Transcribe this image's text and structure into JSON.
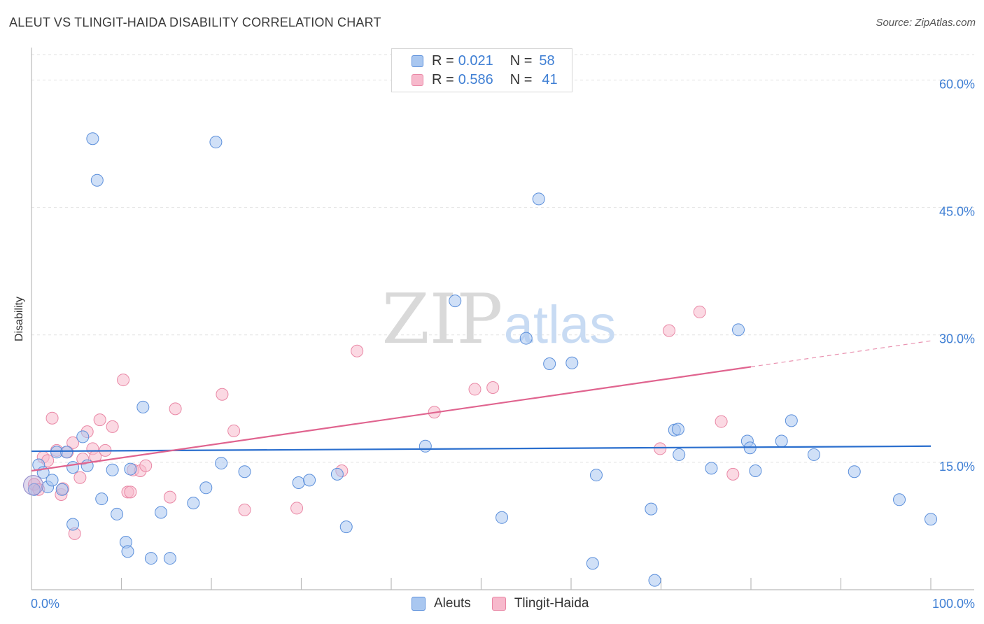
{
  "title": "ALEUT VS TLINGIT-HAIDA DISABILITY CORRELATION CHART",
  "source": "Source: ZipAtlas.com",
  "watermark": {
    "zip": "ZIP",
    "atlas": "atlas"
  },
  "colors": {
    "aleut_fill": "#a9c7f0",
    "aleut_stroke": "#5b8fdb",
    "aleut_line": "#2b6fce",
    "tlingit_fill": "#f7b9cc",
    "tlingit_stroke": "#e987a5",
    "tlingit_line": "#e0648f",
    "tick_label": "#3f7fd4",
    "grid": "#e2e2e2"
  },
  "legend": {
    "rows": [
      {
        "r_label": "R =",
        "r_value": "0.021",
        "n_label": "N =",
        "n_value": "58"
      },
      {
        "r_label": "R =",
        "r_value": "0.586",
        "n_label": "N =",
        "n_value": "41"
      }
    ]
  },
  "bottom_legend": {
    "aleut": "Aleuts",
    "tlingit": "Tlingit-Haida"
  },
  "chart_data": {
    "type": "scatter",
    "title": "ALEUT VS TLINGIT-HAIDA DISABILITY CORRELATION CHART",
    "xlabel": "",
    "ylabel": "Disability",
    "xlim": [
      0,
      100
    ],
    "ylim": [
      0,
      60
    ],
    "x_tick_labels": [
      "0.0%",
      "100.0%"
    ],
    "y_ticks": [
      15,
      30,
      45,
      60
    ],
    "y_tick_labels": [
      "15.0%",
      "30.0%",
      "45.0%",
      "60.0%"
    ],
    "grid": true,
    "legend_position": "top-center",
    "series": [
      {
        "name": "Aleuts",
        "r": 0.021,
        "n": 58,
        "trend": {
          "x": [
            0,
            100
          ],
          "y": [
            16.3,
            16.9
          ],
          "dashed_from": null
        },
        "points": [
          [
            0.3,
            11.8
          ],
          [
            0.8,
            14.7
          ],
          [
            1.3,
            13.8
          ],
          [
            1.8,
            12.1
          ],
          [
            2.3,
            12.9
          ],
          [
            2.8,
            16.2
          ],
          [
            3.4,
            11.8
          ],
          [
            3.9,
            16.2
          ],
          [
            4.6,
            7.7
          ],
          [
            4.6,
            14.4
          ],
          [
            5.7,
            18.0
          ],
          [
            6.2,
            14.6
          ],
          [
            6.8,
            53.1
          ],
          [
            7.3,
            48.2
          ],
          [
            7.8,
            10.7
          ],
          [
            9.0,
            14.1
          ],
          [
            9.5,
            8.9
          ],
          [
            10.5,
            5.6
          ],
          [
            10.7,
            4.5
          ],
          [
            11.0,
            14.2
          ],
          [
            12.4,
            21.5
          ],
          [
            13.3,
            3.7
          ],
          [
            14.4,
            9.1
          ],
          [
            15.4,
            3.7
          ],
          [
            18.0,
            10.2
          ],
          [
            19.4,
            12.0
          ],
          [
            20.5,
            52.7
          ],
          [
            21.1,
            14.9
          ],
          [
            23.7,
            13.9
          ],
          [
            29.7,
            12.6
          ],
          [
            30.9,
            12.9
          ],
          [
            34.0,
            13.6
          ],
          [
            35.0,
            7.4
          ],
          [
            43.8,
            16.9
          ],
          [
            47.1,
            34.0
          ],
          [
            52.3,
            8.5
          ],
          [
            55.0,
            29.6
          ],
          [
            56.4,
            46.0
          ],
          [
            57.6,
            26.6
          ],
          [
            60.1,
            26.7
          ],
          [
            62.4,
            3.1
          ],
          [
            62.8,
            13.5
          ],
          [
            68.9,
            9.5
          ],
          [
            69.3,
            1.1
          ],
          [
            71.5,
            18.8
          ],
          [
            71.9,
            18.9
          ],
          [
            72.0,
            15.9
          ],
          [
            75.6,
            14.3
          ],
          [
            78.6,
            30.6
          ],
          [
            79.6,
            17.5
          ],
          [
            79.9,
            16.7
          ],
          [
            80.5,
            14.0
          ],
          [
            83.4,
            17.5
          ],
          [
            84.5,
            19.9
          ],
          [
            87.0,
            15.9
          ],
          [
            91.5,
            13.9
          ],
          [
            96.5,
            10.6
          ],
          [
            100.0,
            8.3
          ]
        ]
      },
      {
        "name": "Tlingit-Haida",
        "r": 0.586,
        "n": 41,
        "trend": {
          "x": [
            0,
            100
          ],
          "y": [
            14.0,
            29.3
          ],
          "dashed_from": 80
        },
        "points": [
          [
            0.3,
            12.4
          ],
          [
            0.8,
            11.8
          ],
          [
            1.3,
            15.6
          ],
          [
            1.8,
            15.2
          ],
          [
            2.3,
            20.2
          ],
          [
            2.8,
            16.4
          ],
          [
            3.3,
            11.2
          ],
          [
            3.5,
            11.9
          ],
          [
            4.0,
            16.2
          ],
          [
            4.6,
            17.3
          ],
          [
            4.8,
            6.6
          ],
          [
            5.4,
            13.2
          ],
          [
            5.7,
            15.4
          ],
          [
            6.2,
            18.6
          ],
          [
            6.8,
            16.6
          ],
          [
            7.1,
            15.7
          ],
          [
            7.6,
            20.0
          ],
          [
            8.2,
            16.4
          ],
          [
            9.0,
            19.2
          ],
          [
            10.2,
            24.7
          ],
          [
            10.7,
            11.5
          ],
          [
            11.0,
            11.5
          ],
          [
            11.3,
            14.1
          ],
          [
            12.1,
            14.0
          ],
          [
            12.7,
            14.6
          ],
          [
            15.4,
            10.9
          ],
          [
            16.0,
            21.3
          ],
          [
            21.2,
            23.0
          ],
          [
            22.5,
            18.7
          ],
          [
            23.7,
            9.4
          ],
          [
            29.5,
            9.6
          ],
          [
            34.5,
            14.0
          ],
          [
            36.2,
            28.1
          ],
          [
            44.8,
            20.9
          ],
          [
            49.3,
            23.6
          ],
          [
            51.3,
            23.8
          ],
          [
            69.9,
            16.6
          ],
          [
            70.9,
            30.5
          ],
          [
            74.3,
            32.7
          ],
          [
            76.7,
            19.8
          ],
          [
            78.0,
            13.6
          ]
        ]
      }
    ]
  }
}
